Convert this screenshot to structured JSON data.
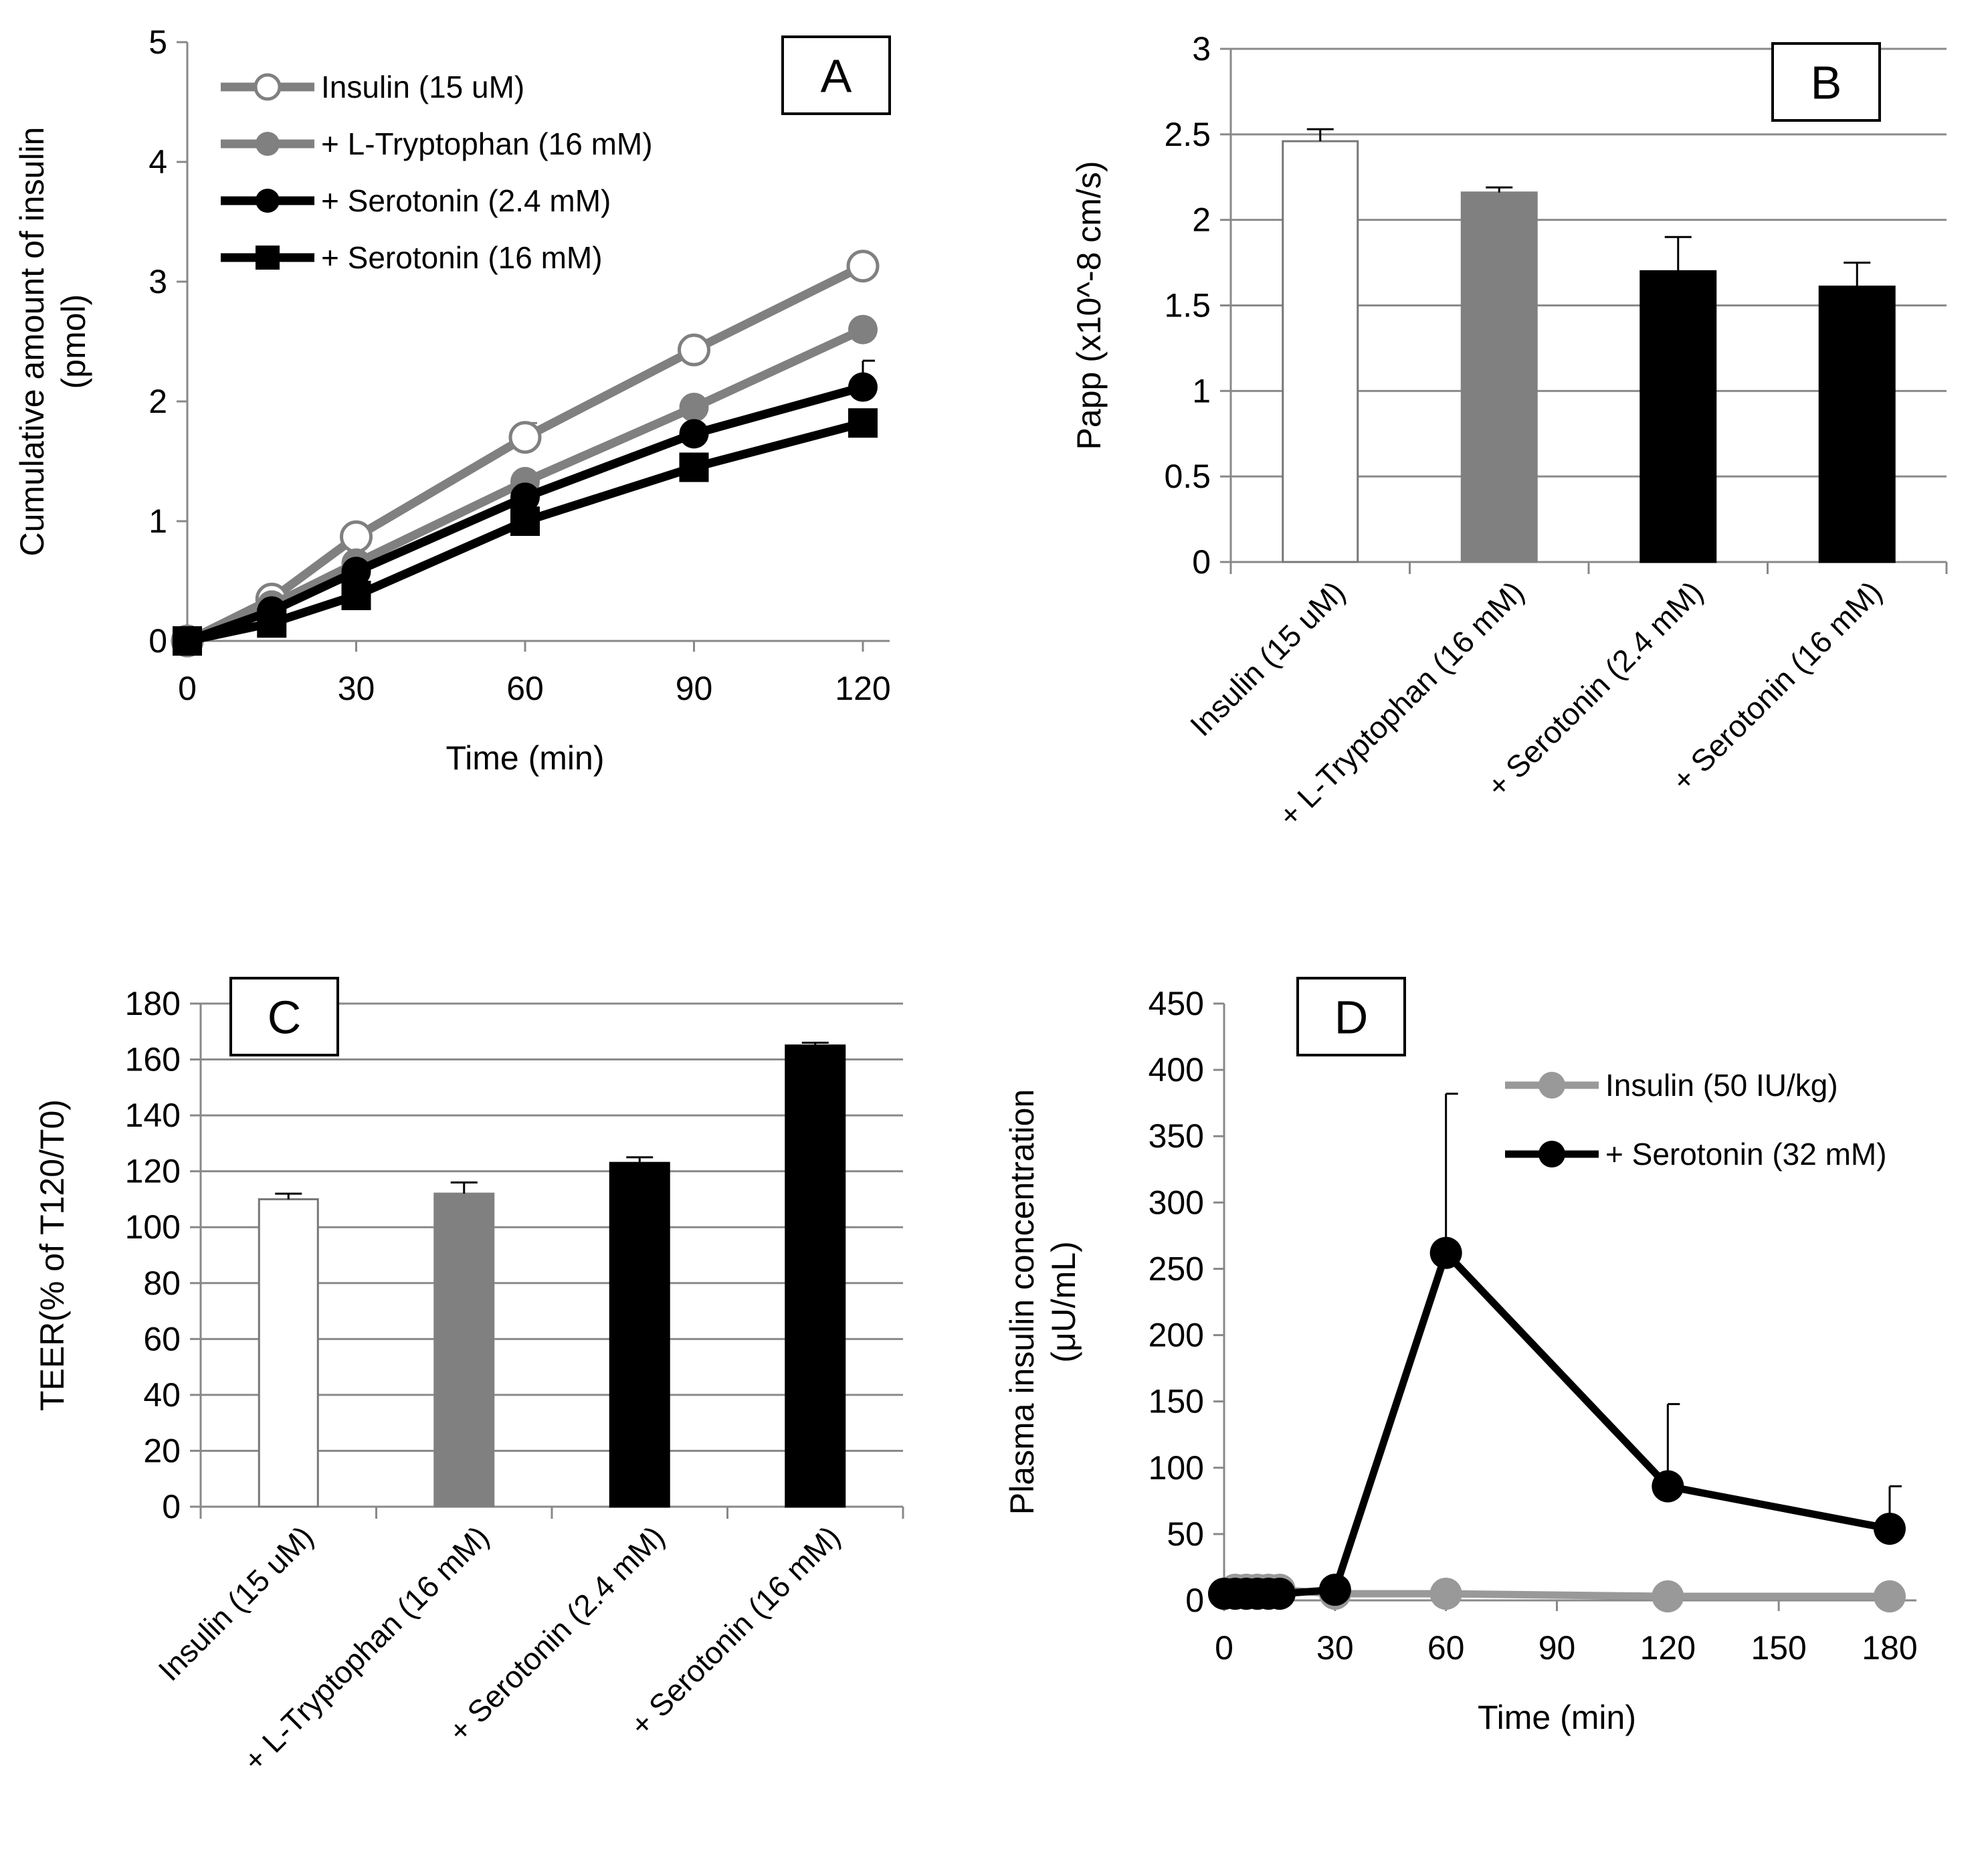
{
  "chart_data": [
    {
      "panel": "A",
      "type": "line",
      "xlabel": "Time (min)",
      "ylabel_lines": [
        "Cumulative amount of insulin",
        "(pmol)"
      ],
      "xlim": [
        0,
        120
      ],
      "ylim": [
        0,
        5
      ],
      "xticks": [
        0,
        30,
        60,
        90,
        120
      ],
      "yticks": [
        0,
        1,
        2,
        3,
        4,
        5
      ],
      "grid": false,
      "legend_position": "top-left",
      "x": [
        0,
        15,
        30,
        60,
        90,
        120
      ],
      "series": [
        {
          "name": "Insulin (15 uM)",
          "color": "#808080",
          "marker": "open-circle",
          "values": [
            0,
            0.35,
            0.87,
            1.7,
            2.43,
            3.13
          ],
          "errors": [
            0,
            0,
            0.07,
            0.12,
            0,
            0.06
          ]
        },
        {
          "name": "+ L-Tryptophan (16 mM)",
          "color": "#808080",
          "marker": "filled-circle",
          "values": [
            0,
            0.3,
            0.65,
            1.33,
            1.95,
            2.6
          ],
          "errors": [
            0,
            0,
            0,
            0,
            0.05,
            0.05
          ]
        },
        {
          "name": "+ Serotonin (2.4 mM)",
          "color": "#000000",
          "marker": "filled-circle",
          "values": [
            0,
            0.25,
            0.58,
            1.2,
            1.73,
            2.12
          ],
          "errors": [
            0,
            0,
            0,
            0,
            0,
            0.22
          ]
        },
        {
          "name": "+ Serotonin (16 mM)",
          "color": "#000000",
          "marker": "square",
          "values": [
            0,
            0.15,
            0.38,
            1.0,
            1.45,
            1.82
          ],
          "errors": [
            0,
            0,
            0,
            0,
            0,
            0
          ]
        }
      ]
    },
    {
      "panel": "B",
      "type": "bar",
      "ylabel": "Papp (x10^-8 cm/s)",
      "ylim": [
        0,
        3
      ],
      "yticks": [
        "0",
        "0.5",
        "1",
        "1.5",
        "2",
        "2.5",
        "3"
      ],
      "grid": true,
      "categories": [
        "Insulin (15 uM)",
        "+ L-Tryptophan (16 mM)",
        "+ Serotonin (2.4 mM)",
        "+ Serotonin (16 mM)"
      ],
      "values": [
        2.46,
        2.16,
        1.7,
        1.61
      ],
      "errors": [
        0.07,
        0.03,
        0.2,
        0.14
      ],
      "colors": [
        "#ffffff",
        "#808080",
        "#000000",
        "#000000"
      ]
    },
    {
      "panel": "C",
      "type": "bar",
      "ylabel": "TEER(% of T120/T0)",
      "ylim": [
        0,
        180
      ],
      "yticks": [
        "0",
        "20",
        "40",
        "60",
        "80",
        "100",
        "120",
        "140",
        "160",
        "180"
      ],
      "grid": true,
      "categories": [
        "Insulin (15 uM)",
        "+ L-Tryptophan (16 mM)",
        "+ Serotonin (2.4 mM)",
        "+ Serotonin (16 mM)"
      ],
      "values": [
        110,
        112,
        123,
        165
      ],
      "errors": [
        2,
        4,
        2,
        1
      ],
      "colors": [
        "#ffffff",
        "#808080",
        "#000000",
        "#000000"
      ]
    },
    {
      "panel": "D",
      "type": "line",
      "xlabel": "Time (min)",
      "ylabel_lines": [
        "Plasma insulin concentration",
        "(μU/mL)"
      ],
      "xlim": [
        0,
        180
      ],
      "ylim": [
        0,
        450
      ],
      "xticks": [
        0,
        30,
        60,
        90,
        120,
        150,
        180
      ],
      "yticks": [
        0,
        50,
        100,
        150,
        200,
        250,
        300,
        350,
        400,
        450
      ],
      "grid": false,
      "legend_position": "top-right",
      "series": [
        {
          "name": "Insulin (50 IU/kg)",
          "color": "#999999",
          "marker": "filled-circle",
          "x": [
            0,
            3,
            6,
            9,
            12,
            15,
            30,
            60,
            120,
            180
          ],
          "values": [
            5,
            8,
            8,
            8,
            8,
            8,
            5,
            5,
            3,
            3
          ],
          "errors": [
            0,
            0,
            0,
            0,
            0,
            0,
            0,
            0,
            0,
            0
          ]
        },
        {
          "name": "+ Serotonin (32 mM)",
          "color": "#000000",
          "marker": "filled-circle",
          "x": [
            0,
            3,
            6,
            9,
            12,
            15,
            30,
            60,
            120,
            180
          ],
          "values": [
            5,
            5,
            5,
            5,
            5,
            5,
            8,
            262,
            86,
            54
          ],
          "errors": [
            0,
            0,
            0,
            0,
            0,
            0,
            0,
            120,
            62,
            32
          ]
        }
      ]
    }
  ]
}
